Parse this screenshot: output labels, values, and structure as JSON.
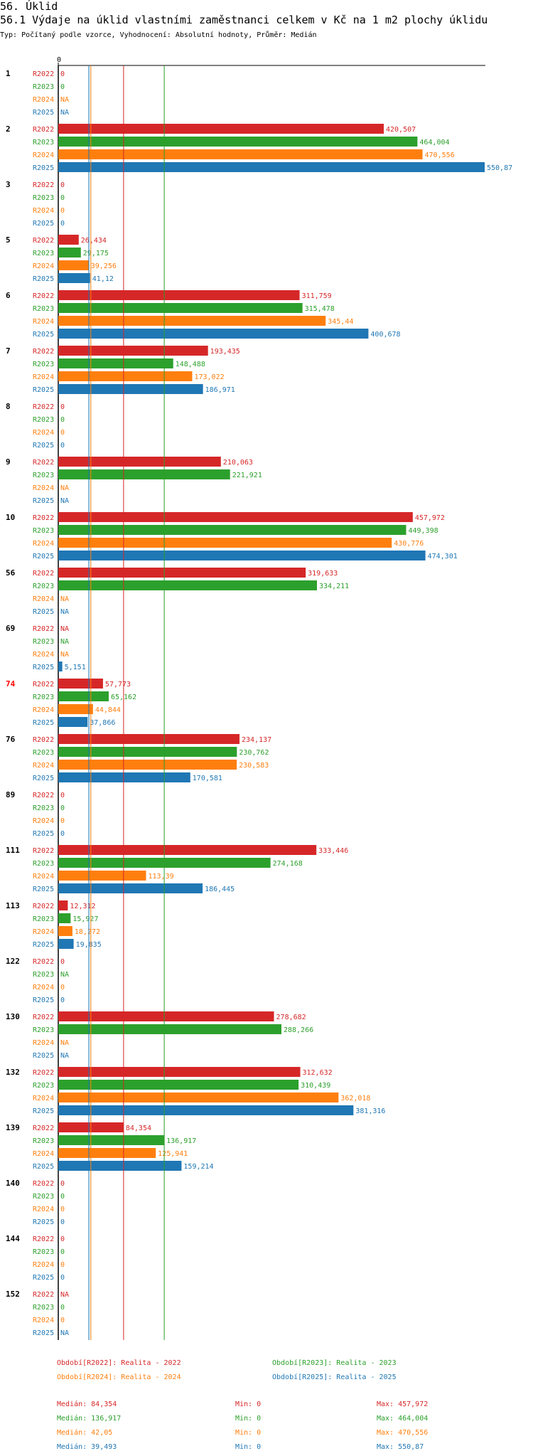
{
  "title": "56. Úklid",
  "subtitle": "56.1 Výdaje na úklid vlastními zaměstnanci celkem v Kč na 1 m2 plochy úklidu",
  "meta": "Typ: Počítaný podle vzorce, Vyhodnocení: Absolutní hodnoty, Průměr: Medián",
  "colors": {
    "R2022": "#d62728",
    "R2023": "#2ca02c",
    "R2024": "#ff7f0e",
    "R2025": "#1f77b4",
    "highlight": "#ff0000"
  },
  "chart_data": {
    "type": "bar",
    "orientation": "horizontal",
    "axis_zero_label": "0",
    "xlim": [
      0,
      550.87
    ],
    "series_names": [
      "R2022",
      "R2023",
      "R2024",
      "R2025"
    ],
    "groups": [
      {
        "id": "1",
        "highlight": false,
        "values": [
          0,
          0,
          null,
          null
        ],
        "labels": [
          "0",
          "0",
          "NA",
          "NA"
        ]
      },
      {
        "id": "2",
        "highlight": false,
        "values": [
          420.507,
          464.004,
          470.556,
          550.87
        ],
        "labels": [
          "420,507",
          "464,004",
          "470,556",
          "550,87"
        ]
      },
      {
        "id": "3",
        "highlight": false,
        "values": [
          0,
          0,
          0,
          0
        ],
        "labels": [
          "0",
          "0",
          "0",
          "0"
        ]
      },
      {
        "id": "5",
        "highlight": false,
        "values": [
          26.434,
          29.175,
          39.256,
          41.12
        ],
        "labels": [
          "26,434",
          "29,175",
          "39,256",
          "41,12"
        ]
      },
      {
        "id": "6",
        "highlight": false,
        "values": [
          311.759,
          315.478,
          345.44,
          400.678
        ],
        "labels": [
          "311,759",
          "315,478",
          "345,44",
          "400,678"
        ]
      },
      {
        "id": "7",
        "highlight": false,
        "values": [
          193.435,
          148.488,
          173.022,
          186.971
        ],
        "labels": [
          "193,435",
          "148,488",
          "173,022",
          "186,971"
        ]
      },
      {
        "id": "8",
        "highlight": false,
        "values": [
          0,
          0,
          0,
          0
        ],
        "labels": [
          "0",
          "0",
          "0",
          "0"
        ]
      },
      {
        "id": "9",
        "highlight": false,
        "values": [
          210.063,
          221.921,
          null,
          null
        ],
        "labels": [
          "210,063",
          "221,921",
          "NA",
          "NA"
        ]
      },
      {
        "id": "10",
        "highlight": false,
        "values": [
          457.972,
          449.398,
          430.776,
          474.301
        ],
        "labels": [
          "457,972",
          "449,398",
          "430,776",
          "474,301"
        ]
      },
      {
        "id": "56",
        "highlight": false,
        "values": [
          319.633,
          334.211,
          null,
          null
        ],
        "labels": [
          "319,633",
          "334,211",
          "NA",
          "NA"
        ]
      },
      {
        "id": "69",
        "highlight": false,
        "values": [
          null,
          null,
          null,
          5.151
        ],
        "labels": [
          "NA",
          "NA",
          "NA",
          "5,151"
        ]
      },
      {
        "id": "74",
        "highlight": true,
        "values": [
          57.773,
          65.162,
          44.844,
          37.866
        ],
        "labels": [
          "57,773",
          "65,162",
          "44,844",
          "37,866"
        ]
      },
      {
        "id": "76",
        "highlight": false,
        "values": [
          234.137,
          230.762,
          230.583,
          170.581
        ],
        "labels": [
          "234,137",
          "230,762",
          "230,583",
          "170,581"
        ]
      },
      {
        "id": "89",
        "highlight": false,
        "values": [
          0,
          0,
          0,
          0
        ],
        "labels": [
          "0",
          "0",
          "0",
          "0"
        ]
      },
      {
        "id": "111",
        "highlight": false,
        "values": [
          333.446,
          274.168,
          113.39,
          186.445
        ],
        "labels": [
          "333,446",
          "274,168",
          "113,39",
          "186,445"
        ]
      },
      {
        "id": "113",
        "highlight": false,
        "values": [
          12.312,
          15.927,
          18.272,
          19.835
        ],
        "labels": [
          "12,312",
          "15,927",
          "18,272",
          "19,835"
        ]
      },
      {
        "id": "122",
        "highlight": false,
        "values": [
          0,
          null,
          0,
          0
        ],
        "labels": [
          "0",
          "NA",
          "0",
          "0"
        ]
      },
      {
        "id": "130",
        "highlight": false,
        "values": [
          278.682,
          288.266,
          null,
          null
        ],
        "labels": [
          "278,682",
          "288,266",
          "NA",
          "NA"
        ]
      },
      {
        "id": "132",
        "highlight": false,
        "values": [
          312.632,
          310.439,
          362.018,
          381.316
        ],
        "labels": [
          "312,632",
          "310,439",
          "362,018",
          "381,316"
        ]
      },
      {
        "id": "139",
        "highlight": false,
        "values": [
          84.354,
          136.917,
          125.941,
          159.214
        ],
        "labels": [
          "84,354",
          "136,917",
          "125,941",
          "159,214"
        ]
      },
      {
        "id": "140",
        "highlight": false,
        "values": [
          0,
          0,
          0,
          0
        ],
        "labels": [
          "0",
          "0",
          "0",
          "0"
        ]
      },
      {
        "id": "144",
        "highlight": false,
        "values": [
          0,
          0,
          0,
          0
        ],
        "labels": [
          "0",
          "0",
          "0",
          "0"
        ]
      },
      {
        "id": "152",
        "highlight": false,
        "values": [
          null,
          0,
          0,
          null
        ],
        "labels": [
          "NA",
          "0",
          "0",
          "NA"
        ]
      }
    ],
    "median_lines": [
      {
        "series": "R2022",
        "value": 84.354
      },
      {
        "series": "R2023",
        "value": 136.917
      },
      {
        "series": "R2024",
        "value": 42.05
      },
      {
        "series": "R2025",
        "value": 39.493
      }
    ]
  },
  "legend": {
    "periods": [
      {
        "series": "R2022",
        "text": "Období[R2022]: Realita - 2022"
      },
      {
        "series": "R2023",
        "text": "Období[R2023]: Realita - 2023"
      },
      {
        "series": "R2024",
        "text": "Období[R2024]: Realita - 2024"
      },
      {
        "series": "R2025",
        "text": "Období[R2025]: Realita - 2025"
      }
    ],
    "stats": [
      {
        "series": "R2022",
        "median": "Medián: 84,354",
        "min": "Min: 0",
        "max": "Max: 457,972"
      },
      {
        "series": "R2023",
        "median": "Medián: 136,917",
        "min": "Min: 0",
        "max": "Max: 464,004"
      },
      {
        "series": "R2024",
        "median": "Medián: 42,05",
        "min": "Min: 0",
        "max": "Max: 470,556"
      },
      {
        "series": "R2025",
        "median": "Medián: 39,493",
        "min": "Min: 0",
        "max": "Max: 550,87"
      }
    ]
  }
}
